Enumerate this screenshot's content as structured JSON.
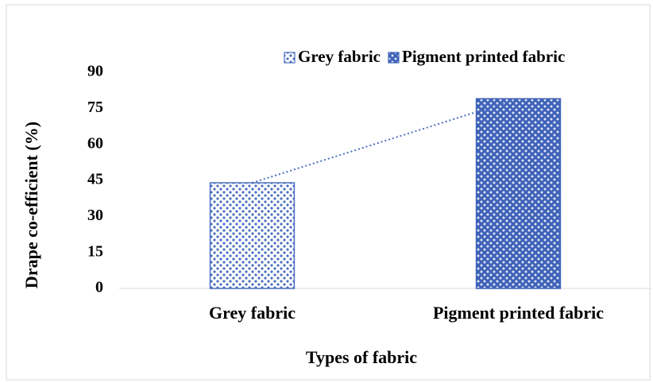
{
  "chart_data": {
    "type": "bar",
    "categories": [
      "Grey fabric",
      "Pigment printed fabric"
    ],
    "series": [
      {
        "name": "Grey fabric",
        "color": "#4a6fc0",
        "values": [
          44,
          null
        ]
      },
      {
        "name": "Pigment printed fabric",
        "color": "#3f62b8",
        "values": [
          null,
          79
        ]
      }
    ],
    "x_label": "Types of fabric",
    "y_label": "Drape co-efficient (%)",
    "ylim": [
      0,
      90
    ],
    "yticks": [
      0,
      15,
      30,
      45,
      60,
      75,
      90
    ],
    "trendline": true,
    "legend": "top-right"
  }
}
